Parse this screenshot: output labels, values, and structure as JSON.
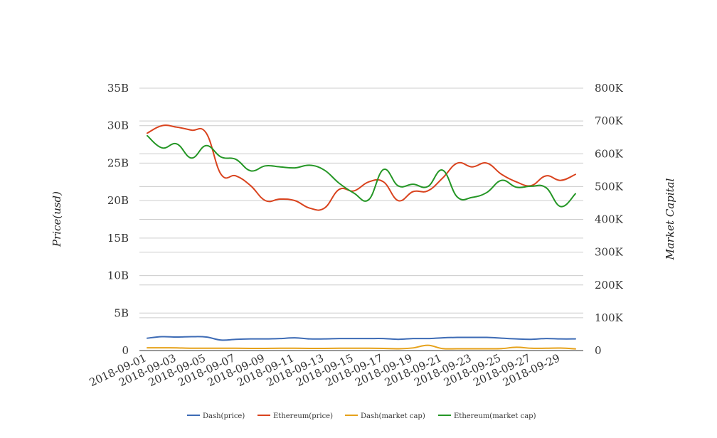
{
  "chart_data": {
    "type": "line",
    "x": [
      "2018-09-01",
      "2018-09-02",
      "2018-09-03",
      "2018-09-04",
      "2018-09-05",
      "2018-09-06",
      "2018-09-07",
      "2018-09-08",
      "2018-09-09",
      "2018-09-10",
      "2018-09-11",
      "2018-09-12",
      "2018-09-13",
      "2018-09-14",
      "2018-09-15",
      "2018-09-16",
      "2018-09-17",
      "2018-09-18",
      "2018-09-19",
      "2018-09-20",
      "2018-09-21",
      "2018-09-22",
      "2018-09-23",
      "2018-09-24",
      "2018-09-25",
      "2018-09-26",
      "2018-09-27",
      "2018-09-28",
      "2018-09-29",
      "2018-09-30"
    ],
    "x_tick_labels": [
      "2018-09-01",
      "2018-09-03",
      "2018-09-05",
      "2018-09-07",
      "2018-09-09",
      "2018-09-11",
      "2018-09-13",
      "2018-09-15",
      "2018-09-17",
      "2018-09-19",
      "2018-09-21",
      "2018-09-23",
      "2018-09-25",
      "2018-09-27",
      "2018-09-29"
    ],
    "y_left": {
      "label": "Price(usd)",
      "ylim": [
        0,
        35000000000
      ],
      "tick_labels": [
        "0",
        "5B",
        "10B",
        "15B",
        "20B",
        "25B",
        "30B",
        "35B"
      ]
    },
    "y_right": {
      "label": "Market Capital",
      "ylim": [
        0,
        800000
      ],
      "tick_labels": [
        "0",
        "100K",
        "200K",
        "300K",
        "400K",
        "500K",
        "600K",
        "700K",
        "800K"
      ]
    },
    "grid": true,
    "legend_position": "bottom",
    "series": [
      {
        "name": "Dash(price)",
        "axis": "left",
        "color": "#3d6bb5",
        "values": [
          1650000000.0,
          1850000000.0,
          1800000000.0,
          1850000000.0,
          1800000000.0,
          1400000000.0,
          1500000000.0,
          1550000000.0,
          1550000000.0,
          1600000000.0,
          1700000000.0,
          1550000000.0,
          1550000000.0,
          1600000000.0,
          1600000000.0,
          1600000000.0,
          1600000000.0,
          1500000000.0,
          1600000000.0,
          1600000000.0,
          1700000000.0,
          1750000000.0,
          1750000000.0,
          1750000000.0,
          1650000000.0,
          1550000000.0,
          1500000000.0,
          1600000000.0,
          1550000000.0,
          1550000000.0
        ]
      },
      {
        "name": "Ethereum(price)",
        "axis": "left",
        "color": "#d9431e",
        "values": [
          29000000000.0,
          30000000000.0,
          29800000000.0,
          29400000000.0,
          29000000000.0,
          23500000000.0,
          23300000000.0,
          22000000000.0,
          20000000000.0,
          20200000000.0,
          20000000000.0,
          19000000000.0,
          19000000000.0,
          21500000000.0,
          21300000000.0,
          22500000000.0,
          22500000000.0,
          20000000000.0,
          21200000000.0,
          21300000000.0,
          23000000000.0,
          25000000000.0,
          24500000000.0,
          25000000000.0,
          23500000000.0,
          22500000000.0,
          22000000000.0,
          23300000000.0,
          22700000000.0,
          23500000000.0
        ]
      },
      {
        "name": "Dash(market cap)",
        "axis": "right",
        "color": "#e6a21b",
        "values": [
          8500,
          8500,
          8000,
          7000,
          7000,
          7000,
          7000,
          6500,
          6500,
          7000,
          7000,
          6500,
          6500,
          7000,
          7000,
          7000,
          6500,
          5500,
          8000,
          16000,
          6000,
          5500,
          5500,
          5500,
          6000,
          10000,
          7000,
          7000,
          7500,
          5000
        ]
      },
      {
        "name": "Ethereum(market cap)",
        "axis": "right",
        "color": "#249625",
        "values": [
          655000,
          618000,
          630000,
          587000,
          625000,
          590000,
          583000,
          548000,
          563000,
          560000,
          557000,
          565000,
          550000,
          510000,
          480000,
          460000,
          552000,
          502000,
          507000,
          500000,
          550000,
          468000,
          467000,
          482000,
          519000,
          498000,
          501000,
          497000,
          439000,
          478000
        ]
      }
    ]
  }
}
